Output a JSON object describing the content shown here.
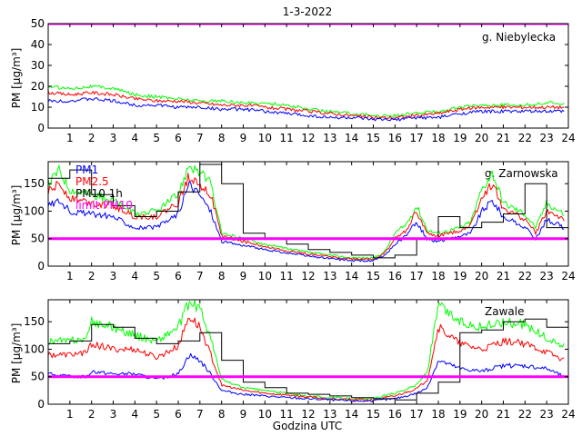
{
  "figure": {
    "title": "1-3-2022",
    "xlabel": "Godzina UTC"
  },
  "colors": {
    "pm1": "#0000ff",
    "pm25": "#ff0000",
    "pm10": "#00ff00",
    "pm10_1h": "#000000",
    "limit": "#ff00ff"
  },
  "chart_data": [
    {
      "type": "line",
      "station": "g. Niebylecka",
      "ylabel": "PM [µg/m³]",
      "xlim": [
        0,
        24
      ],
      "ylim": [
        0,
        50
      ],
      "xticks": [
        1,
        2,
        3,
        4,
        5,
        6,
        7,
        8,
        9,
        10,
        11,
        12,
        13,
        14,
        15,
        16,
        17,
        18,
        19,
        20,
        21,
        22,
        23,
        24
      ],
      "yticks": [
        0,
        10,
        20,
        30,
        40,
        50
      ],
      "limit_value": 50,
      "legend": [],
      "hours": [
        0,
        1,
        2,
        3,
        4,
        5,
        6,
        7,
        8,
        9,
        10,
        11,
        12,
        13,
        14,
        15,
        16,
        17,
        18,
        19,
        20,
        21,
        22,
        23,
        23.8
      ],
      "series": [
        {
          "key": "pm10",
          "values": [
            20,
            19,
            20,
            19,
            16,
            15,
            14,
            13,
            13,
            12,
            12,
            11,
            9,
            8,
            7,
            6,
            6,
            7,
            8,
            10,
            11,
            11,
            11,
            12,
            12
          ]
        },
        {
          "key": "pm25",
          "values": [
            17,
            16,
            17,
            16,
            14,
            13,
            13,
            12,
            11,
            11,
            10,
            9,
            8,
            7,
            6,
            5,
            5,
            6,
            7,
            9,
            10,
            10,
            10,
            10,
            10
          ]
        },
        {
          "key": "pm1",
          "values": [
            13,
            13,
            14,
            13,
            11,
            11,
            10,
            10,
            9,
            9,
            8,
            7,
            6,
            5,
            5,
            4,
            4,
            5,
            5,
            7,
            8,
            8,
            8,
            8,
            8
          ]
        }
      ]
    },
    {
      "type": "line",
      "station": "g. Zarnowska",
      "ylabel": "PM [µg/m³]",
      "xlim": [
        0,
        24
      ],
      "ylim": [
        0,
        190
      ],
      "xticks": [
        1,
        2,
        3,
        4,
        5,
        6,
        7,
        8,
        9,
        10,
        11,
        12,
        13,
        14,
        15,
        16,
        17,
        18,
        19,
        20,
        21,
        22,
        23,
        24
      ],
      "yticks": [
        0,
        50,
        100,
        150
      ],
      "limit_value": 50,
      "legend": [
        {
          "key": "pm1",
          "label": "PM1"
        },
        {
          "key": "pm25",
          "label": "PM2.5"
        },
        {
          "key": "pm10_1h",
          "label": "PM10 1h"
        },
        {
          "key": "limit",
          "label": "limit PM10"
        }
      ],
      "hours": [
        0,
        0.5,
        1,
        2,
        3,
        4,
        5,
        6,
        6.5,
        7,
        7.5,
        8,
        9,
        10,
        11,
        12,
        13,
        14,
        15,
        15.5,
        16,
        16.5,
        17,
        17.5,
        18,
        19,
        19.5,
        20,
        20.5,
        21,
        22,
        22.5,
        23,
        23.8
      ],
      "series": [
        {
          "key": "pm10",
          "values": [
            150,
            175,
            140,
            130,
            120,
            95,
            100,
            130,
            185,
            170,
            150,
            60,
            50,
            40,
            32,
            25,
            20,
            15,
            15,
            25,
            60,
            75,
            110,
            65,
            60,
            70,
            80,
            140,
            170,
            115,
            95,
            70,
            115,
            95
          ]
        },
        {
          "key": "pm25",
          "values": [
            135,
            150,
            125,
            115,
            110,
            90,
            90,
            115,
            165,
            150,
            130,
            55,
            45,
            35,
            28,
            22,
            17,
            13,
            13,
            22,
            50,
            65,
            100,
            58,
            55,
            65,
            75,
            125,
            150,
            105,
            85,
            60,
            100,
            85
          ]
        },
        {
          "key": "pm1",
          "values": [
            110,
            120,
            100,
            95,
            90,
            70,
            70,
            95,
            150,
            130,
            100,
            45,
            38,
            30,
            24,
            18,
            14,
            10,
            10,
            18,
            40,
            55,
            80,
            48,
            45,
            55,
            60,
            100,
            120,
            90,
            70,
            50,
            85,
            70
          ]
        }
      ],
      "hourly_pm10": [
        160,
        175,
        130,
        110,
        90,
        100,
        135,
        185,
        150,
        60,
        50,
        40,
        30,
        25,
        20,
        15,
        20,
        50,
        90,
        70,
        80,
        95,
        150,
        70
      ]
    },
    {
      "type": "line",
      "station": "Zawale",
      "ylabel": "PM [µg/m³]",
      "xlim": [
        0,
        24
      ],
      "ylim": [
        0,
        190
      ],
      "xticks": [
        1,
        2,
        3,
        4,
        5,
        6,
        7,
        8,
        9,
        10,
        11,
        12,
        13,
        14,
        15,
        16,
        17,
        18,
        19,
        20,
        21,
        22,
        23,
        24
      ],
      "yticks": [
        0,
        50,
        100,
        150
      ],
      "limit_value": 50,
      "legend": [],
      "hours": [
        0,
        1,
        1.8,
        2,
        3,
        4,
        5,
        6,
        6.5,
        7,
        7.5,
        8,
        9,
        10,
        11,
        12,
        13,
        14,
        15,
        16,
        17,
        17.5,
        18,
        19,
        20,
        21,
        22,
        23,
        23.8
      ],
      "series": [
        {
          "key": "pm10",
          "values": [
            115,
            115,
            120,
            150,
            140,
            125,
            115,
            140,
            185,
            175,
            120,
            45,
            30,
            25,
            20,
            15,
            12,
            10,
            10,
            20,
            35,
            60,
            180,
            150,
            140,
            150,
            145,
            120,
            105
          ]
        },
        {
          "key": "pm25",
          "values": [
            90,
            90,
            95,
            110,
            100,
            100,
            85,
            105,
            160,
            140,
            90,
            35,
            25,
            20,
            17,
            13,
            10,
            8,
            8,
            15,
            28,
            45,
            140,
            110,
            100,
            115,
            110,
            95,
            80
          ]
        },
        {
          "key": "pm1",
          "values": [
            55,
            50,
            50,
            60,
            55,
            55,
            45,
            55,
            90,
            80,
            55,
            25,
            18,
            15,
            12,
            10,
            8,
            6,
            6,
            10,
            20,
            30,
            80,
            65,
            60,
            70,
            70,
            65,
            50
          ]
        }
      ],
      "hourly_pm10": [
        110,
        115,
        145,
        140,
        120,
        110,
        115,
        130,
        80,
        40,
        30,
        20,
        18,
        15,
        12,
        10,
        8,
        20,
        40,
        130,
        135,
        150,
        155,
        140
      ]
    }
  ]
}
